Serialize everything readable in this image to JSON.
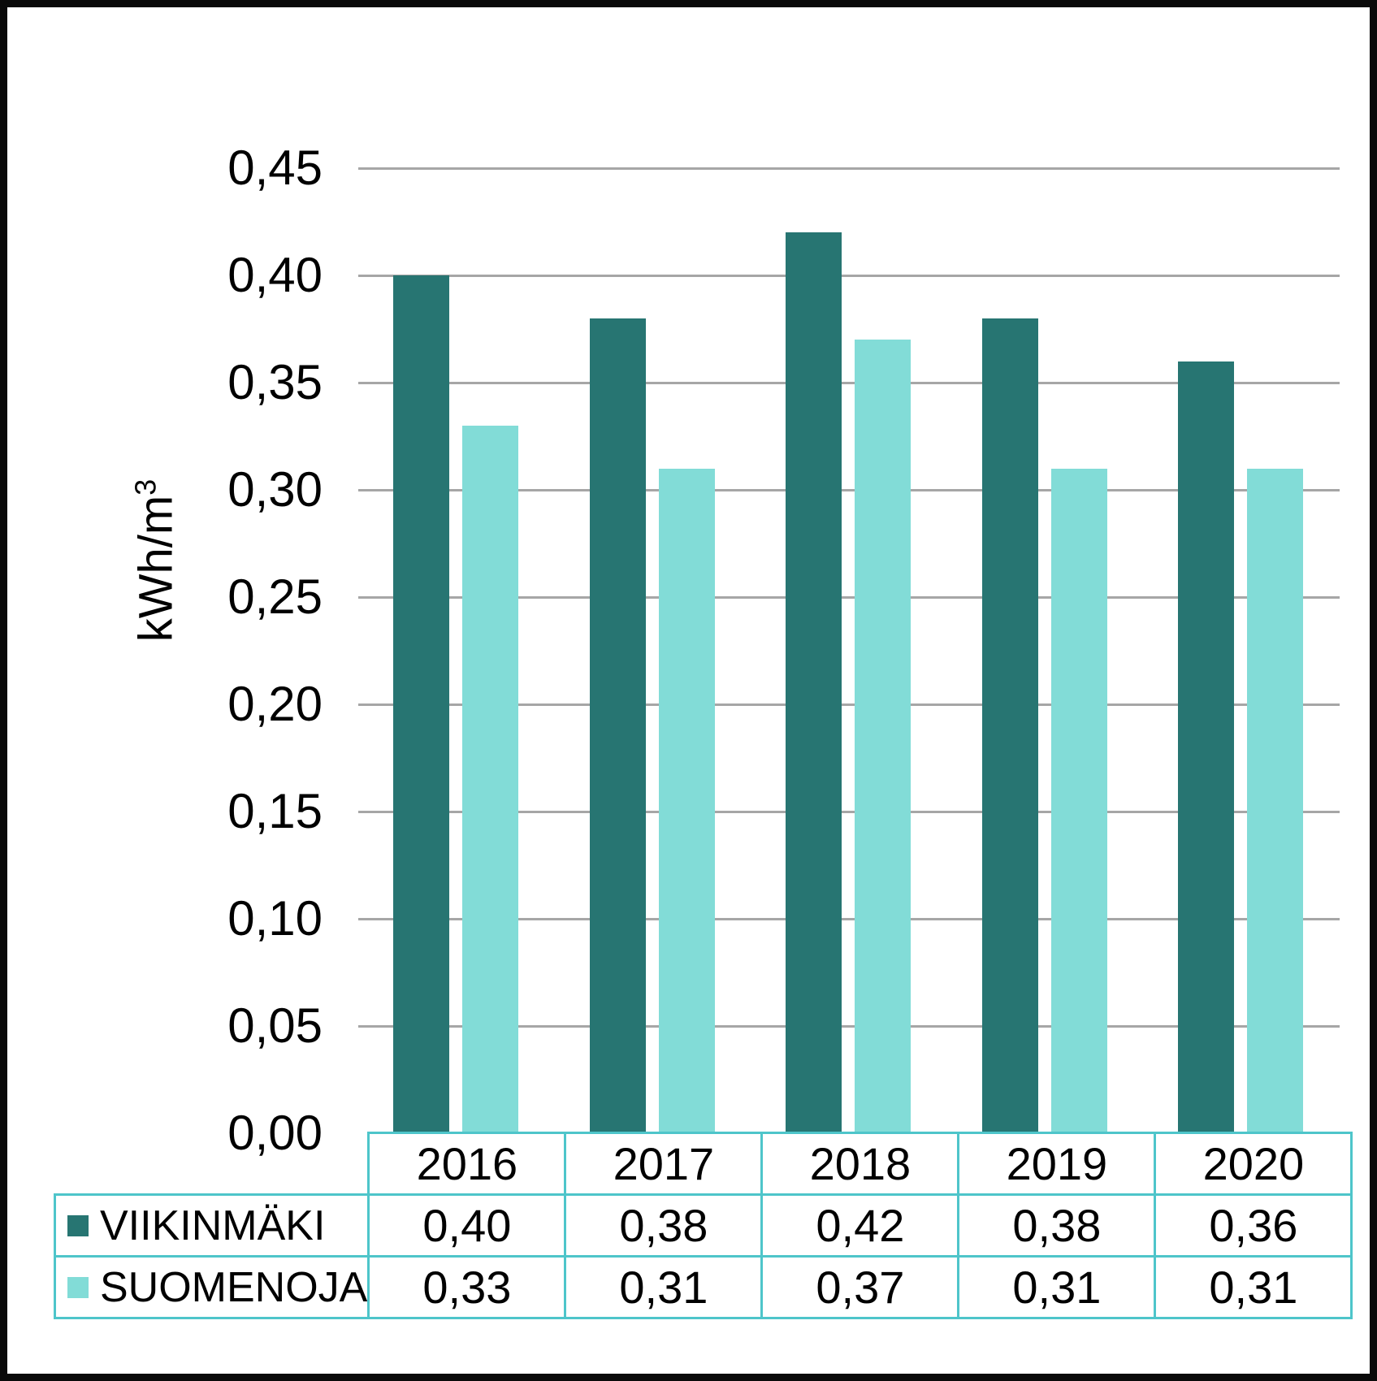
{
  "colors": {
    "background": "#FFFFFF",
    "frame_border": "#0A0A0A",
    "gridline": "#A6A6A6",
    "table_border": "#4EC5CA",
    "text": "#000000",
    "series_dark": "#277572",
    "series_light": "#82DCD7"
  },
  "chart_data": {
    "type": "bar",
    "title": "",
    "ylabel": "kWh/m³",
    "ylabel_base": "kWh/m",
    "ylabel_sup": "3",
    "categories": [
      "2016",
      "2017",
      "2018",
      "2019",
      "2020"
    ],
    "series": [
      {
        "name": "VIIKINMÄKI",
        "color": "#277572",
        "values": [
          0.4,
          0.38,
          0.42,
          0.38,
          0.36
        ],
        "display": [
          "0,40",
          "0,38",
          "0,42",
          "0,38",
          "0,36"
        ]
      },
      {
        "name": "SUOMENOJA",
        "color": "#82DCD7",
        "values": [
          0.33,
          0.31,
          0.37,
          0.31,
          0.31
        ],
        "display": [
          "0,33",
          "0,31",
          "0,37",
          "0,31",
          "0,31"
        ]
      }
    ],
    "ylim": [
      0,
      0.45
    ],
    "ytick_step": 0.05,
    "yticks": [
      "0,00",
      "0,05",
      "0,10",
      "0,15",
      "0,20",
      "0,25",
      "0,30",
      "0,35",
      "0,40",
      "0,45"
    ],
    "grid": "horizontal",
    "legend_position": "table-left",
    "decimal_separator": ","
  }
}
